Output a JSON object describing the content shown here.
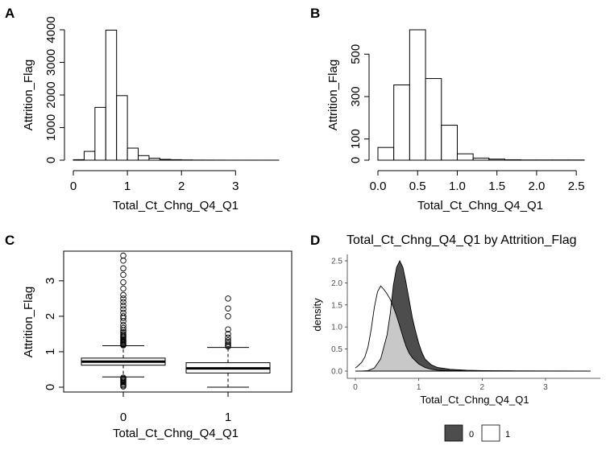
{
  "chart_data": [
    {
      "panel": "A",
      "type": "bar",
      "title": "",
      "xlabel": "Total_Ct_Chng_Q4_Q1",
      "ylabel": "Attrition_Flag",
      "bin_edges": [
        0,
        0.2,
        0.4,
        0.6,
        0.8,
        1.0,
        1.2,
        1.4,
        1.6,
        1.8,
        2.0,
        2.2,
        2.4,
        2.6,
        2.8,
        3.0,
        3.2,
        3.4,
        3.6,
        3.8
      ],
      "values": [
        15,
        270,
        1620,
        3990,
        1980,
        370,
        140,
        60,
        25,
        15,
        8,
        4,
        3,
        2,
        1,
        1,
        1,
        1,
        1
      ],
      "xticks": [
        0,
        1,
        2,
        3
      ],
      "yticks": [
        0,
        1000,
        2000,
        3000,
        4000
      ],
      "xlim": [
        0,
        3.8
      ],
      "ylim": [
        0,
        4000
      ]
    },
    {
      "panel": "B",
      "type": "bar",
      "title": "",
      "xlabel": "Total_Ct_Chng_Q4_Q1",
      "ylabel": "Attrition_Flag",
      "bin_edges": [
        0,
        0.2,
        0.4,
        0.6,
        0.8,
        1.0,
        1.2,
        1.4,
        1.6,
        1.8,
        2.0,
        2.2,
        2.4,
        2.6
      ],
      "values": [
        60,
        355,
        615,
        385,
        165,
        30,
        10,
        5,
        2,
        1,
        1,
        1,
        1
      ],
      "xticks": [
        "0.0",
        "0.5",
        "1.0",
        "1.5",
        "2.0",
        "2.5"
      ],
      "yticks": [
        0,
        100,
        300,
        500
      ],
      "xlim": [
        0,
        2.6
      ],
      "ylim": [
        0,
        615
      ]
    },
    {
      "panel": "C",
      "type": "box",
      "title": "",
      "xlabel": "Total_Ct_Chng_Q4_Q1",
      "ylabel": "Attrition_Flag",
      "categories": [
        "0",
        "1"
      ],
      "boxes": [
        {
          "category": "0",
          "whisker_low": 0.29,
          "q1": 0.62,
          "median": 0.72,
          "q3": 0.82,
          "whisker_high": 1.17,
          "outliers": [
            0.02,
            0.05,
            0.08,
            0.12,
            0.15,
            0.18,
            0.21,
            0.24,
            0.27,
            1.18,
            1.2,
            1.22,
            1.25,
            1.28,
            1.3,
            1.33,
            1.36,
            1.4,
            1.43,
            1.46,
            1.5,
            1.55,
            1.6,
            1.67,
            1.75,
            1.86,
            1.95,
            2.0,
            2.1,
            2.2,
            2.3,
            2.4,
            2.5,
            2.6,
            2.78,
            2.96,
            3.17,
            3.35,
            3.57,
            3.71
          ]
        },
        {
          "category": "1",
          "whisker_low": 0.0,
          "q1": 0.4,
          "median": 0.53,
          "q3": 0.69,
          "whisker_high": 1.12,
          "outliers": [
            1.15,
            1.18,
            1.22,
            1.27,
            1.32,
            1.4,
            1.5,
            1.63,
            2.0,
            2.22,
            2.5
          ]
        }
      ],
      "yticks": [
        0,
        1,
        2,
        3
      ],
      "ylim": [
        0,
        3.75
      ]
    },
    {
      "panel": "D",
      "type": "area",
      "title": "Total_Ct_Chng_Q4_Q1  by  Attrition_Flag",
      "xlabel": "Total_Ct_Chng_Q4_Q1",
      "ylabel": "density",
      "xticks": [
        0,
        1,
        2,
        3
      ],
      "yticks": [
        "0.0",
        "0.5",
        "1.0",
        "1.5",
        "2.0",
        "2.5"
      ],
      "xlim": [
        0,
        3.75
      ],
      "ylim": [
        0,
        2.6
      ],
      "legend": "bottom",
      "series": [
        {
          "name": "0",
          "color": "#4d4d4d",
          "x": [
            0.0,
            0.1,
            0.2,
            0.3,
            0.4,
            0.5,
            0.55,
            0.6,
            0.65,
            0.7,
            0.75,
            0.8,
            0.85,
            0.9,
            0.95,
            1.0,
            1.05,
            1.1,
            1.2,
            1.3,
            1.5,
            1.75,
            2.0,
            2.5,
            3.0,
            3.71
          ],
          "y": [
            0.0,
            0.0,
            0.01,
            0.07,
            0.28,
            0.82,
            1.3,
            1.95,
            2.35,
            2.5,
            2.35,
            2.0,
            1.6,
            1.2,
            0.9,
            0.63,
            0.42,
            0.27,
            0.14,
            0.08,
            0.04,
            0.02,
            0.01,
            0.005,
            0.003,
            0.002
          ]
        },
        {
          "name": "1",
          "color": "#ffffff",
          "x": [
            0.0,
            0.05,
            0.1,
            0.15,
            0.2,
            0.25,
            0.3,
            0.35,
            0.4,
            0.45,
            0.5,
            0.55,
            0.6,
            0.65,
            0.7,
            0.75,
            0.8,
            0.85,
            0.9,
            1.0,
            1.1,
            1.2,
            1.3,
            1.5,
            1.75,
            2.0,
            2.5
          ],
          "y": [
            0.07,
            0.13,
            0.2,
            0.32,
            0.55,
            0.95,
            1.45,
            1.8,
            1.93,
            1.85,
            1.75,
            1.63,
            1.45,
            1.25,
            1.02,
            0.78,
            0.56,
            0.4,
            0.3,
            0.16,
            0.08,
            0.04,
            0.02,
            0.01,
            0.006,
            0.004,
            0.002
          ]
        }
      ]
    }
  ],
  "panels": {
    "a": {
      "letter": "A"
    },
    "b": {
      "letter": "B"
    },
    "c": {
      "letter": "C"
    },
    "d": {
      "letter": "D"
    }
  },
  "colors": {
    "overlap": "#c8c8c8",
    "group0": "#4d4d4d",
    "group1": "#ffffff"
  }
}
